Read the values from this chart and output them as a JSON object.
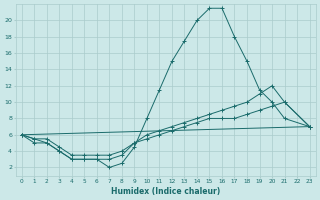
{
  "xlabel": "Humidex (Indice chaleur)",
  "x_values": [
    0,
    1,
    2,
    3,
    4,
    5,
    6,
    7,
    8,
    9,
    10,
    11,
    12,
    13,
    14,
    15,
    16,
    17,
    18,
    19,
    20,
    21,
    22,
    23
  ],
  "line1_x": [
    0,
    1,
    2,
    3,
    4,
    5,
    6,
    7,
    8,
    9,
    10,
    11,
    12,
    13,
    14,
    15,
    16,
    17,
    18,
    19,
    20,
    21,
    23
  ],
  "line1_y": [
    6,
    5,
    5,
    4,
    3,
    3,
    3,
    2,
    2.5,
    4.5,
    8,
    11.5,
    15,
    17.5,
    20,
    21.5,
    21.5,
    18,
    15,
    11.5,
    10,
    8,
    7
  ],
  "line2_x": [
    0,
    23
  ],
  "line2_y": [
    6,
    7
  ],
  "line3_x": [
    0,
    1,
    2,
    3,
    4,
    5,
    6,
    7,
    8,
    9,
    10,
    11,
    12,
    13,
    14,
    15,
    16,
    17,
    18,
    19,
    20,
    21,
    23
  ],
  "line3_y": [
    6,
    5.5,
    5.5,
    4.5,
    3.5,
    3.5,
    3.5,
    3.5,
    4,
    5,
    5.5,
    6,
    6.5,
    7,
    7.5,
    8,
    8,
    8,
    8.5,
    9,
    9.5,
    10,
    7
  ],
  "line4_x": [
    0,
    1,
    2,
    3,
    4,
    5,
    6,
    7,
    8,
    9,
    10,
    11,
    12,
    13,
    14,
    15,
    16,
    17,
    18,
    19,
    20,
    21,
    23
  ],
  "line4_y": [
    6,
    5.5,
    5,
    4,
    3,
    3,
    3,
    3,
    3.5,
    5,
    6,
    6.5,
    7,
    7.5,
    8,
    8.5,
    9,
    9.5,
    10,
    11,
    12,
    10,
    7
  ],
  "background_color": "#cce8e8",
  "grid_color": "#aacccc",
  "line_color": "#1a6b6b",
  "ylim": [
    1,
    22
  ],
  "yticks": [
    2,
    4,
    6,
    8,
    10,
    12,
    14,
    16,
    18,
    20
  ],
  "xticks": [
    0,
    1,
    2,
    3,
    4,
    5,
    6,
    7,
    8,
    9,
    10,
    11,
    12,
    13,
    14,
    15,
    16,
    17,
    18,
    19,
    20,
    21,
    22,
    23
  ],
  "figsize": [
    3.2,
    2.0
  ],
  "dpi": 100
}
